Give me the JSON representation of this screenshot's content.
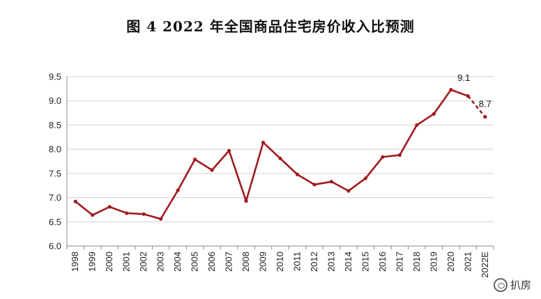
{
  "chart_data": {
    "type": "line",
    "title": "图 4   2022 年全国商品住宅房价收入比预测",
    "xlabel": "",
    "ylabel": "",
    "categories": [
      "1998",
      "1999",
      "2000",
      "2001",
      "2002",
      "2003",
      "2004",
      "2005",
      "2006",
      "2007",
      "2008",
      "2009",
      "2010",
      "2011",
      "2012",
      "2013",
      "2014",
      "2015",
      "2016",
      "2017",
      "2018",
      "2019",
      "2020",
      "2021",
      "2022E"
    ],
    "series": [
      {
        "values": [
          6.92,
          6.64,
          6.81,
          6.68,
          6.66,
          6.56,
          7.15,
          7.79,
          7.57,
          7.97,
          6.93,
          8.14,
          7.81,
          7.48,
          7.27,
          7.33,
          7.14,
          7.4,
          7.84,
          7.88,
          8.5,
          8.73,
          9.23,
          9.1,
          8.67
        ],
        "color": "#a01a1f",
        "dashed_last_segment": true
      }
    ],
    "data_labels": [
      {
        "category": "2021",
        "text": "9.1"
      },
      {
        "category": "2022E",
        "text": "8.7"
      }
    ],
    "ylim": [
      6.0,
      9.5
    ],
    "yticks": [
      "6.0",
      "6.5",
      "7.0",
      "7.5",
      "8.0",
      "8.5",
      "9.0",
      "9.5"
    ],
    "grid": true,
    "legend": "none"
  },
  "watermark": {
    "icon": "wechat-icon",
    "text": "扒房"
  }
}
